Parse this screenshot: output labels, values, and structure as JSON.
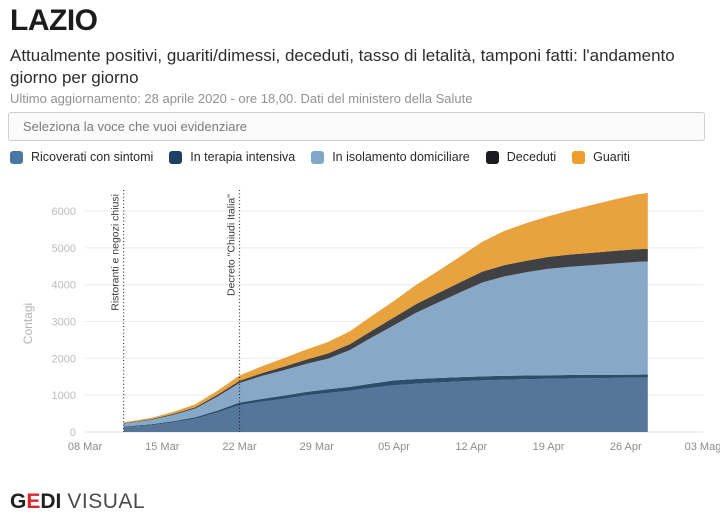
{
  "header": {
    "region": "LAZIO",
    "subtitle": "Attualmente positivi, guariti/dimessi, deceduti, tasso di letalità, tamponi fatti: l'andamento giorno per giorno",
    "updated": "Ultimo aggiornamento: 28 aprile 2020 - ore 18,00. Dati del ministero della Salute"
  },
  "controls": {
    "select_placeholder": "Seleziona la voce che vuoi evidenziare"
  },
  "legend": [
    {
      "label": "Ricoverati con sintomi",
      "color": "#4a78a4"
    },
    {
      "label": "In terapia intensiva",
      "color": "#1d4064"
    },
    {
      "label": "In isolamento domiciliare",
      "color": "#7ea8ca"
    },
    {
      "label": "Deceduti",
      "color": "#1c1c1e"
    },
    {
      "label": "Guariti",
      "color": "#ec9f2e"
    }
  ],
  "chart_data": {
    "type": "area",
    "stacked": true,
    "ylabel": "Contagi",
    "ylim": [
      0,
      6500
    ],
    "y_ticks": [
      0,
      1000,
      2000,
      3000,
      4000,
      5000,
      6000
    ],
    "grid": "horizontal",
    "legend_position": "top",
    "x_ticks": [
      "08 Mar",
      "15 Mar",
      "22 Mar",
      "29 Mar",
      "05 Apr",
      "12 Apr",
      "19 Apr",
      "26 Apr",
      "03 Mag"
    ],
    "x_tick_days": [
      0,
      7,
      14,
      21,
      28,
      35,
      42,
      49,
      56
    ],
    "dates": [
      "12 Mar",
      "14 Mar",
      "16 Mar",
      "18 Mar",
      "20 Mar",
      "22 Mar",
      "24 Mar",
      "26 Mar",
      "28 Mar",
      "30 Mar",
      "01 Apr",
      "03 Apr",
      "05 Apr",
      "07 Apr",
      "09 Apr",
      "11 Apr",
      "13 Apr",
      "15 Apr",
      "17 Apr",
      "19 Apr",
      "21 Apr",
      "23 Apr",
      "25 Apr",
      "27 Apr",
      "28 Apr"
    ],
    "days": [
      3.5,
      6,
      8,
      10,
      12,
      14,
      16,
      18,
      20,
      22,
      24,
      26,
      28,
      30,
      32,
      34,
      36,
      38,
      40,
      42,
      44,
      46,
      48,
      50,
      51
    ],
    "series": [
      {
        "name": "Ricoverati con sintomi",
        "fill": "#537699",
        "values": [
          130,
          185,
          260,
          360,
          530,
          730,
          820,
          900,
          990,
          1060,
          1120,
          1200,
          1270,
          1310,
          1345,
          1375,
          1400,
          1420,
          1435,
          1445,
          1455,
          1462,
          1468,
          1474,
          1477
        ]
      },
      {
        "name": "In terapia intensiva",
        "fill": "#2c4e6d",
        "values": [
          18,
          24,
          30,
          38,
          52,
          70,
          80,
          88,
          95,
          100,
          105,
          118,
          130,
          128,
          122,
          115,
          110,
          105,
          100,
          95,
          92,
          90,
          88,
          85,
          84
        ]
      },
      {
        "name": "In isolamento domiciliare",
        "fill": "#87a9c7",
        "values": [
          80,
          120,
          175,
          240,
          380,
          530,
          620,
          690,
          760,
          830,
          1000,
          1250,
          1500,
          1800,
          2050,
          2300,
          2550,
          2700,
          2800,
          2890,
          2940,
          2980,
          3020,
          3060,
          3068
        ]
      },
      {
        "name": "Deceduti",
        "fill": "#414144",
        "values": [
          13,
          18,
          26,
          36,
          48,
          60,
          76,
          95,
          117,
          140,
          162,
          185,
          210,
          235,
          255,
          275,
          294,
          306,
          316,
          325,
          331,
          336,
          340,
          343,
          344
        ]
      },
      {
        "name": "Guariti",
        "fill": "#e8a23e",
        "values": [
          20,
          35,
          55,
          80,
          110,
          145,
          185,
          230,
          270,
          310,
          350,
          400,
          450,
          520,
          600,
          700,
          810,
          930,
          1020,
          1100,
          1200,
          1300,
          1400,
          1490,
          1517
        ]
      }
    ],
    "annotations": [
      {
        "label": "Ristoranti e negozi chiusi",
        "day": 3.5
      },
      {
        "label": "Decreto \"Chiudi Italia\"",
        "day": 14
      }
    ]
  },
  "footer": {
    "logo_g": "G",
    "logo_e": "E",
    "logo_di": "DI",
    "logo_visual": "VISUAL",
    "logo_accent": "#d8262c"
  }
}
